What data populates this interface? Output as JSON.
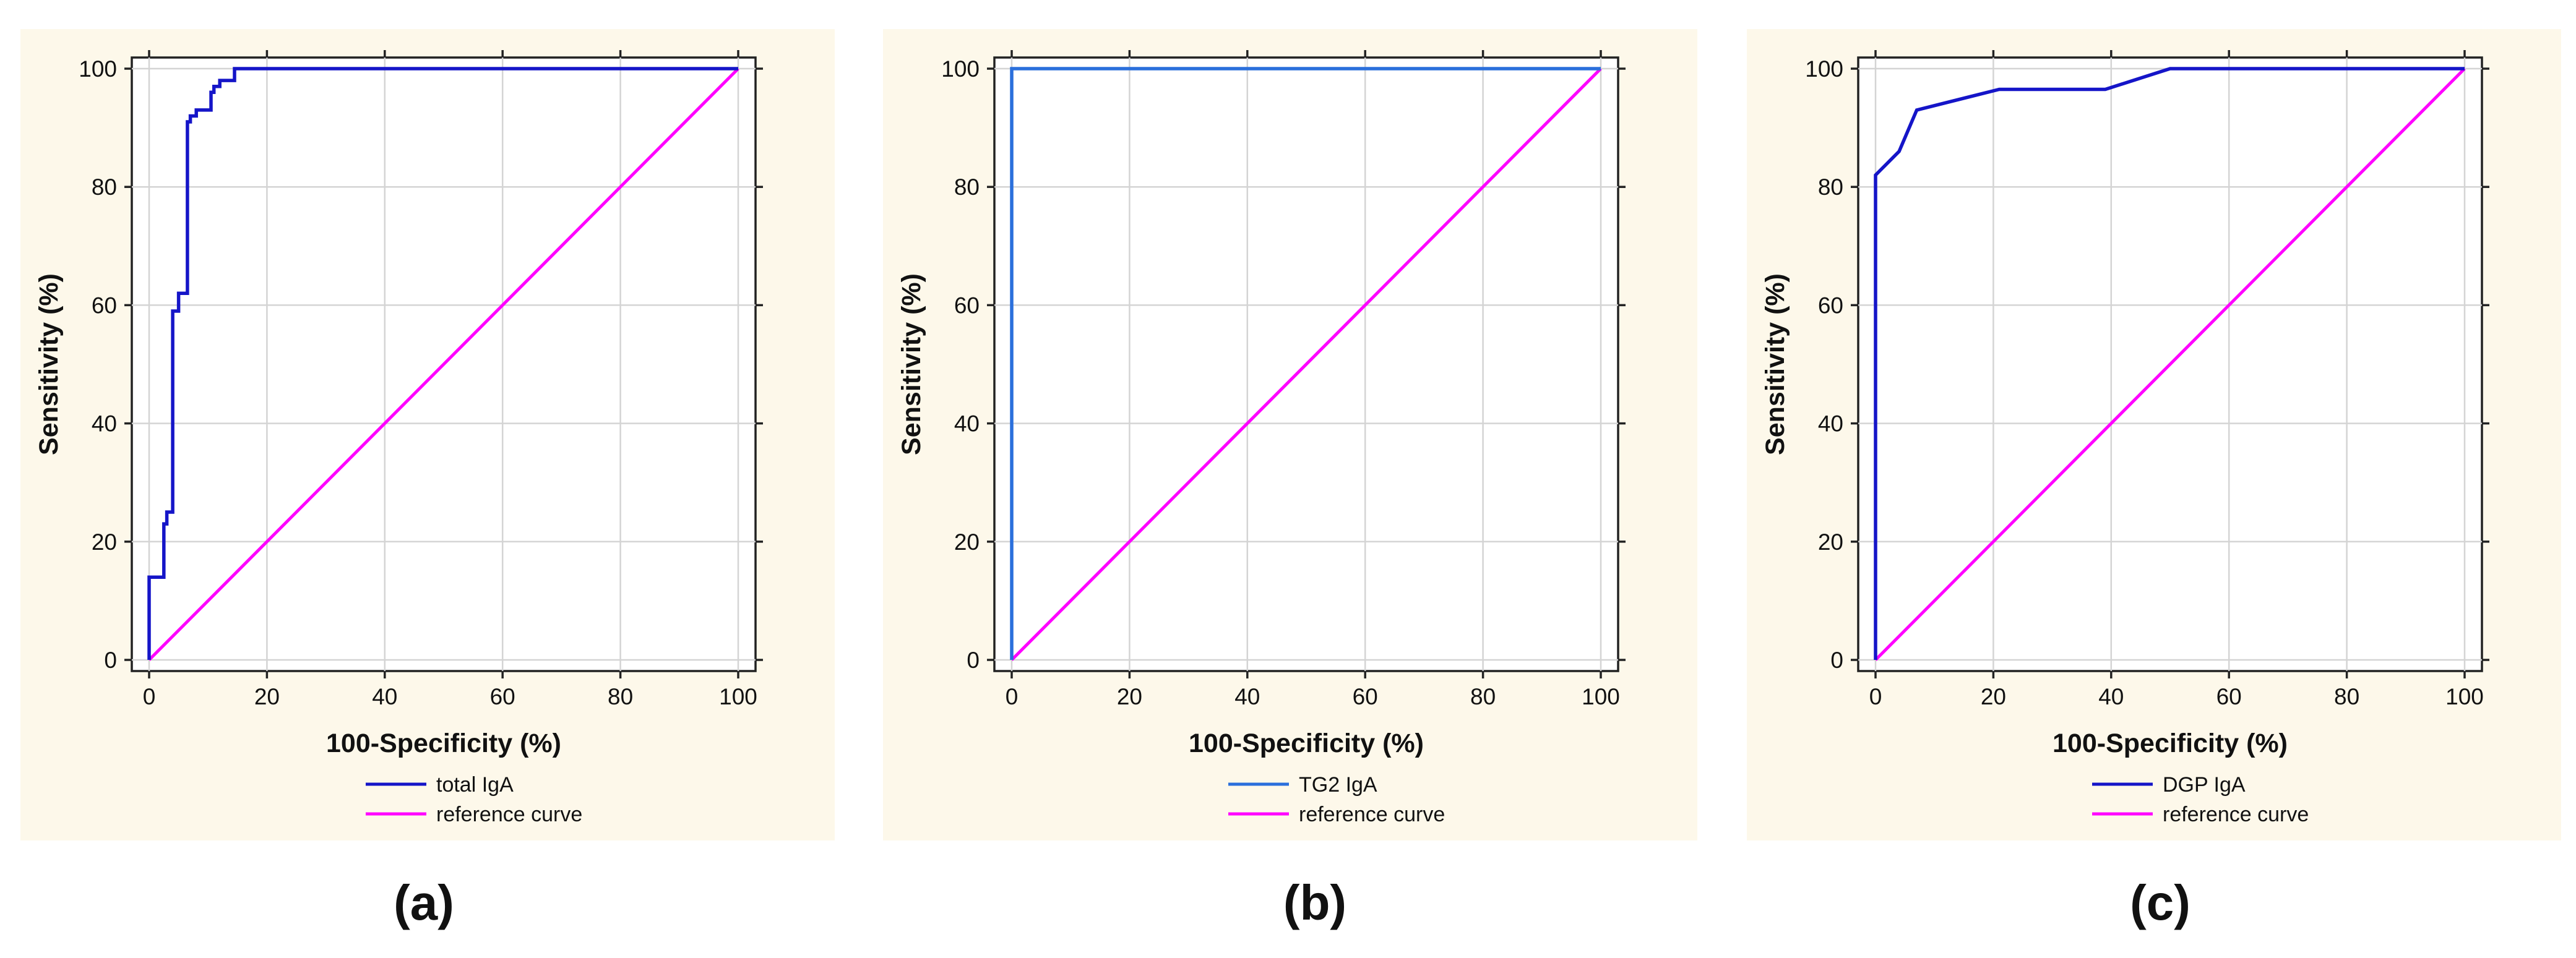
{
  "chart_data": [
    {
      "type": "line",
      "caption": "(a)",
      "xlabel": "100-Specificity (%)",
      "ylabel": "Sensitivity (%)",
      "xlim": [
        0,
        100
      ],
      "ylim": [
        0,
        100
      ],
      "xticks": [
        "0",
        "20",
        "40",
        "60",
        "80",
        "100"
      ],
      "yticks": [
        "0",
        "20",
        "40",
        "60",
        "80",
        "100"
      ],
      "grid": true,
      "legend_position": "bottom-center",
      "series": [
        {
          "name": "total IgA",
          "color": "#1515c8",
          "x": [
            0,
            0,
            2.5,
            2.5,
            3,
            3,
            4,
            4,
            5,
            5,
            6.5,
            6.5,
            7,
            7,
            8,
            8,
            10.5,
            10.5,
            11,
            11,
            12,
            12,
            14.5,
            14.5,
            100
          ],
          "y": [
            0,
            14,
            14,
            23,
            23,
            25,
            25,
            59,
            59,
            62,
            62,
            91,
            91,
            92,
            92,
            93,
            93,
            96,
            96,
            97,
            97,
            98,
            98,
            100,
            100
          ]
        },
        {
          "name": "reference curve",
          "color": "#ff00ff",
          "x": [
            0,
            100
          ],
          "y": [
            0,
            100
          ]
        }
      ]
    },
    {
      "type": "line",
      "caption": "(b)",
      "xlabel": "100-Specificity (%)",
      "ylabel": "Sensitivity (%)",
      "xlim": [
        0,
        100
      ],
      "ylim": [
        0,
        100
      ],
      "xticks": [
        "0",
        "20",
        "40",
        "60",
        "80",
        "100"
      ],
      "yticks": [
        "0",
        "20",
        "40",
        "60",
        "80",
        "100"
      ],
      "grid": true,
      "legend_position": "bottom-center",
      "series": [
        {
          "name": "TG2 IgA",
          "color": "#2a6fdc",
          "x": [
            0,
            0,
            100
          ],
          "y": [
            0,
            100,
            100
          ]
        },
        {
          "name": "reference curve",
          "color": "#ff00ff",
          "x": [
            0,
            100
          ],
          "y": [
            0,
            100
          ]
        }
      ]
    },
    {
      "type": "line",
      "caption": "(c)",
      "xlabel": "100-Specificity (%)",
      "ylabel": "Sensitivity (%)",
      "xlim": [
        0,
        100
      ],
      "ylim": [
        0,
        100
      ],
      "xticks": [
        "0",
        "20",
        "40",
        "60",
        "80",
        "100"
      ],
      "yticks": [
        "0",
        "20",
        "40",
        "60",
        "80",
        "100"
      ],
      "grid": true,
      "legend_position": "bottom-center",
      "series": [
        {
          "name": "DGP IgA",
          "color": "#1515c8",
          "x": [
            0,
            0,
            1,
            4,
            7,
            21,
            39,
            50,
            100
          ],
          "y": [
            0,
            82,
            83,
            86,
            93,
            96.5,
            96.5,
            100,
            100
          ]
        },
        {
          "name": "reference curve",
          "color": "#ff00ff",
          "x": [
            0,
            100
          ],
          "y": [
            0,
            100
          ]
        }
      ]
    }
  ]
}
